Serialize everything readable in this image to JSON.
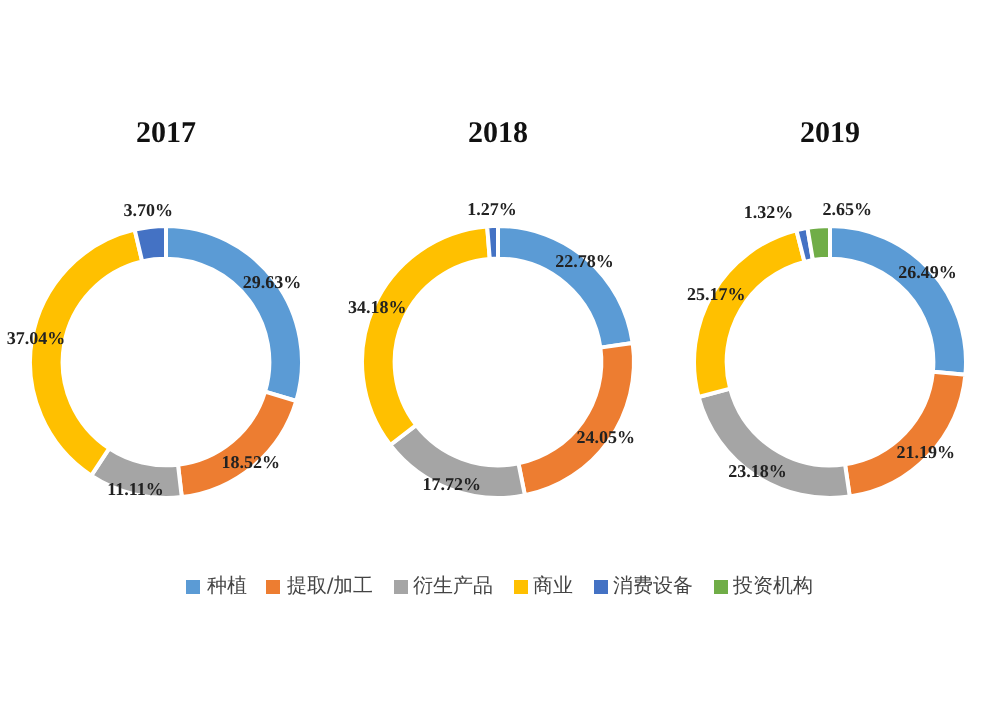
{
  "chart_data": [
    {
      "type": "donut",
      "title": "2017",
      "categories": [
        "种植",
        "提取/加工",
        "衍生产品",
        "商业",
        "消费设备",
        "投资机构"
      ],
      "values": [
        29.63,
        18.52,
        11.11,
        37.04,
        3.7,
        null
      ],
      "colors": [
        "#5b9bd5",
        "#ed7d31",
        "#a5a5a5",
        "#ffc000",
        "#4472c4",
        "#70ad47"
      ],
      "value_labels": [
        "29.63%",
        "18.52%",
        "11.11%",
        "37.04%",
        "3.70%",
        null
      ],
      "legend": "bottom"
    },
    {
      "type": "donut",
      "title": "2018",
      "categories": [
        null,
        null,
        null,
        null,
        null,
        null
      ],
      "values": [
        22.78,
        24.05,
        17.72,
        34.18,
        1.27,
        null
      ],
      "colors": [
        "#5b9bd5",
        "#ed7d31",
        "#a5a5a5",
        "#ffc000",
        "#4472c4",
        "#70ad47"
      ],
      "value_labels": [
        "22.78%",
        "24.05%",
        "17.72%",
        "34.18%",
        "1.27%",
        null
      ]
    },
    {
      "type": "donut",
      "title": "2019",
      "categories": [
        null,
        null,
        null,
        null,
        null,
        null
      ],
      "values": [
        26.49,
        21.19,
        23.18,
        25.17,
        1.32,
        2.65
      ],
      "colors": [
        "#5b9bd5",
        "#ed7d31",
        "#a5a5a5",
        "#ffc000",
        "#4472c4",
        "#70ad47"
      ],
      "value_labels": [
        "26.49%",
        "21.19%",
        "23.18%",
        "25.17%",
        "1.32%",
        "2.65%"
      ]
    }
  ]
}
